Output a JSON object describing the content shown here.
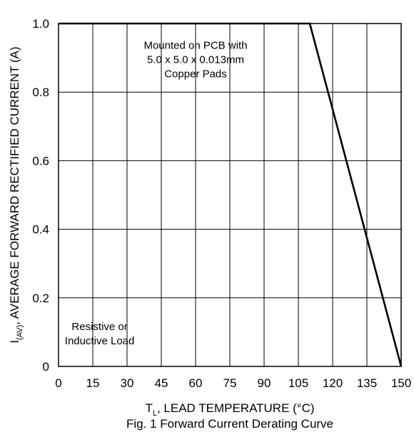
{
  "chart_data": {
    "type": "line",
    "caption": "Fig. 1 Forward Current Derating Curve",
    "xlabel": {
      "symbol_main": "T",
      "symbol_sub": "L",
      "text": ", LEAD TEMPERATURE (°C)"
    },
    "ylabel": {
      "symbol_main": "I",
      "symbol_sub": "(AV)",
      "text": ", AVERAGE FORWARD RECTIFIED CURRENT (A)"
    },
    "xlim": [
      0,
      150
    ],
    "ylim": [
      0,
      1.0
    ],
    "x_ticks": [
      0,
      15,
      30,
      45,
      60,
      75,
      90,
      105,
      120,
      135,
      150
    ],
    "x_tick_labels": [
      "0",
      "15",
      "30",
      "45",
      "60",
      "75",
      "90",
      "105",
      "120",
      "135",
      "150"
    ],
    "y_ticks": [
      0,
      0.2,
      0.4,
      0.6,
      0.8,
      1.0
    ],
    "y_tick_labels": [
      "0",
      "0.2",
      "0.4",
      "0.6",
      "0.8",
      "1.0"
    ],
    "grid": true,
    "series": [
      {
        "x": [
          0,
          110,
          150
        ],
        "y": [
          1.0,
          1.0,
          0
        ]
      }
    ],
    "annotations": [
      {
        "lines": [
          "Mounted on PCB with",
          "5.0 x 5.0 x 0.013mm",
          "Copper Pads"
        ],
        "x": 60,
        "y": 0.98
      },
      {
        "lines": [
          "Resistive or",
          "Inductive Load"
        ],
        "x": 18,
        "y": 0.16
      }
    ]
  }
}
